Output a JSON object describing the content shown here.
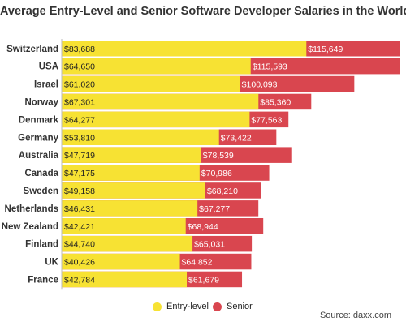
{
  "chart_data": {
    "type": "bar",
    "orientation": "horizontal",
    "stacking": "overlay",
    "title": "Average Entry-Level and Senior Software Developer Salaries in the World",
    "categories": [
      "Switzerland",
      "USA",
      "Israel",
      "Norway",
      "Denmark",
      "Germany",
      "Australia",
      "Canada",
      "Sweden",
      "Netherlands",
      "New Zealand",
      "Finland",
      "UK",
      "France"
    ],
    "series": [
      {
        "name": "Entry-level",
        "color": "#f7e233",
        "values": [
          83688,
          64650,
          61020,
          67301,
          64277,
          53810,
          47719,
          47175,
          49158,
          46431,
          42421,
          44740,
          40426,
          42784
        ],
        "labels": [
          "$83,688",
          "$64,650",
          "$61,020",
          "$67,301",
          "$64,277",
          "$53,810",
          "$47,719",
          "$47,175",
          "$49,158",
          "$46,431",
          "$42,421",
          "$44,740",
          "$40,426",
          "$42,784"
        ]
      },
      {
        "name": "Senior",
        "color": "#d9464f",
        "values": [
          115649,
          115593,
          100093,
          85360,
          77563,
          73422,
          78539,
          70986,
          68210,
          67277,
          68944,
          65031,
          64852,
          61679
        ],
        "labels": [
          "$115,649",
          "$115,593",
          "$100,093",
          "$85,360",
          "$77,563",
          "$73,422",
          "$78,539",
          "$70,986",
          "$68,210",
          "$67,277",
          "$68,944",
          "$65,031",
          "$64,852",
          "$61,679"
        ]
      }
    ],
    "xlabel": "",
    "ylabel": "",
    "legend_position": "bottom",
    "grid": false,
    "source": "Source: daxx.com"
  }
}
